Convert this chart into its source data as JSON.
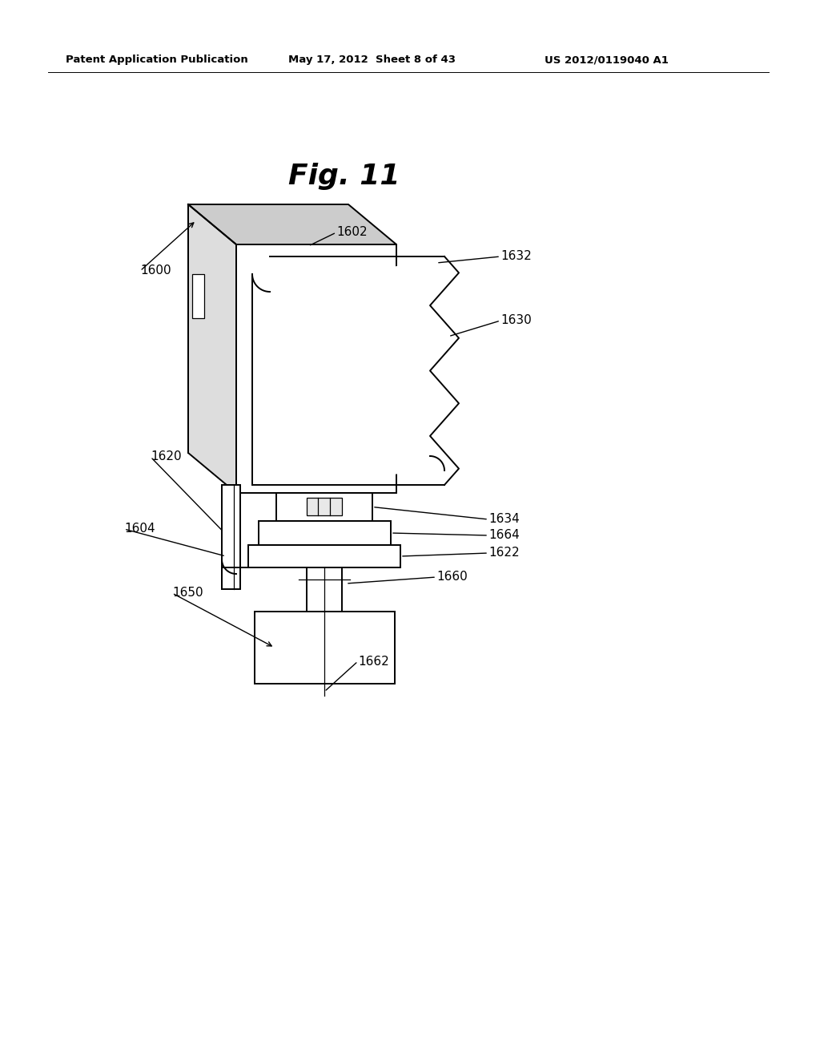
{
  "background_color": "#ffffff",
  "header_left": "Patent Application Publication",
  "header_center": "May 17, 2012  Sheet 8 of 43",
  "header_right": "US 2012/0119040 A1",
  "fig_title": "Fig. 11",
  "line_color": "#000000",
  "lw": 1.4,
  "lw_thin": 0.9
}
